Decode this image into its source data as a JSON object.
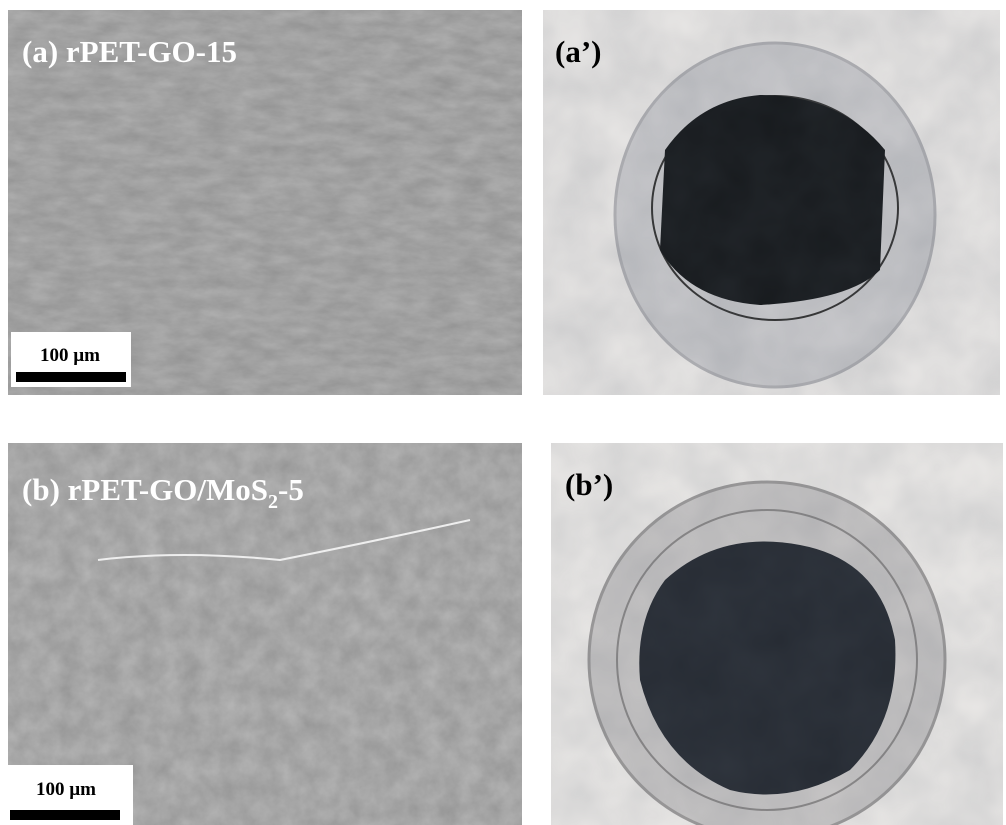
{
  "panels": [
    {
      "label": "(a) rPET-GO-15",
      "scale_bar": "100 µm"
    },
    {
      "label": "(a’)"
    },
    {
      "label_parts": [
        "(b) rPET-GO/MoS",
        "2",
        "-5"
      ],
      "scale_bar": "100 µm"
    },
    {
      "label": "(b’)"
    }
  ]
}
